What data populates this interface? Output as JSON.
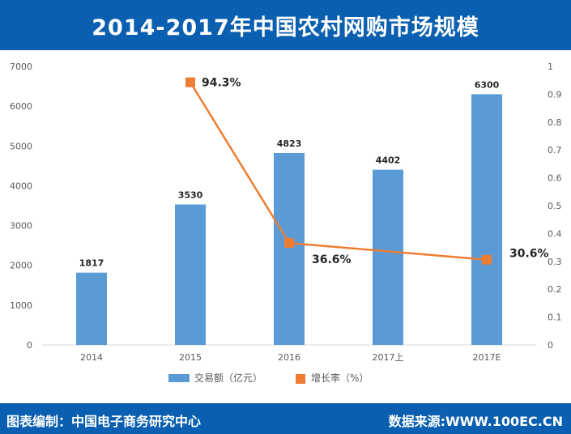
{
  "title": "2014-2017年中国农村网购市场规模",
  "footer": {
    "left": "图表编制：中国电子商务研究中心",
    "right": "数据来源:WWW.100EC.CN"
  },
  "colors": {
    "header": "#0a5fb0",
    "bar": "#5b9bd5",
    "line": "#ed7d31",
    "axis_text": "#595959"
  },
  "chart_data": {
    "type": "bar",
    "categories": [
      "2014",
      "2015",
      "2016",
      "2017上",
      "2017E"
    ],
    "series": [
      {
        "name": "交易额（亿元）",
        "type": "bar",
        "axis": "left",
        "values": [
          1817,
          3530,
          4823,
          4402,
          6300
        ]
      },
      {
        "name": "增长率（%）",
        "type": "line",
        "axis": "right",
        "points": [
          {
            "category": "2015",
            "value": 0.943,
            "label": "94.3%"
          },
          {
            "category": "2016",
            "value": 0.366,
            "label": "36.6%"
          },
          {
            "category": "2017E",
            "value": 0.306,
            "label": "30.6%"
          }
        ]
      }
    ],
    "y_left": {
      "min": 0,
      "max": 7000,
      "ticks": [
        "0",
        "1000",
        "2000",
        "3000",
        "4000",
        "5000",
        "6000",
        "7000"
      ]
    },
    "y_right": {
      "min": 0,
      "max": 1,
      "ticks": [
        "0",
        "0.1",
        "0.2",
        "0.3",
        "0.4",
        "0.5",
        "0.6",
        "0.7",
        "0.8",
        "0.9",
        "1"
      ]
    },
    "bar_labels": [
      "1817",
      "3530",
      "4823",
      "4402",
      "6300"
    ],
    "grid": false,
    "legend": "bottom"
  }
}
